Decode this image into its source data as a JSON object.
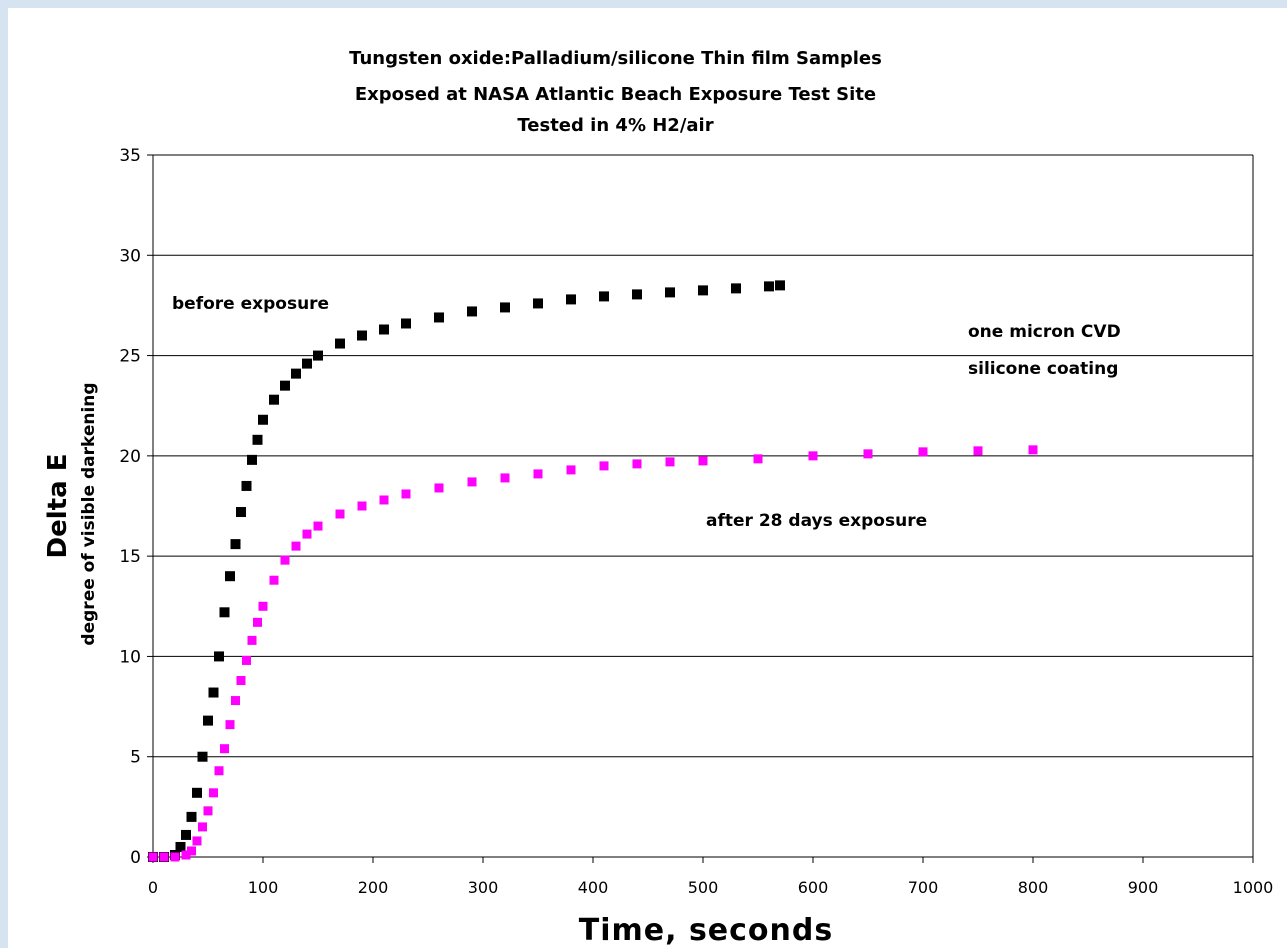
{
  "chart_data": {
    "type": "scatter",
    "title_lines": [
      "Tungsten oxide:Palladium/silicone Thin film Samples",
      "Exposed at NASA Atlantic Beach Exposure Test Site",
      "Tested in 4% H2/air"
    ],
    "xlabel": "Time, seconds",
    "ylabel": "Delta E",
    "ylabel_sub": "degree of visible darkening",
    "xlim": [
      0,
      1000
    ],
    "ylim": [
      0,
      35
    ],
    "x_ticks": [
      "0",
      "100",
      "200",
      "300",
      "400",
      "500",
      "600",
      "700",
      "800",
      "900",
      "1000"
    ],
    "y_ticks": [
      "0",
      "5",
      "10",
      "15",
      "20",
      "25",
      "30",
      "35"
    ],
    "grid": "horizontal",
    "annotations": {
      "before": "before exposure",
      "coating_1": "one micron CVD",
      "coating_2": "silicone coating",
      "after": "after 28 days exposure"
    },
    "series": [
      {
        "key": "before",
        "color": "#000000",
        "points": [
          [
            0,
            0
          ],
          [
            10,
            0
          ],
          [
            20,
            0.1
          ],
          [
            25,
            0.5
          ],
          [
            30,
            1.1
          ],
          [
            35,
            2.0
          ],
          [
            40,
            3.2
          ],
          [
            45,
            5.0
          ],
          [
            50,
            6.8
          ],
          [
            55,
            8.2
          ],
          [
            60,
            10.0
          ],
          [
            65,
            12.2
          ],
          [
            70,
            14.0
          ],
          [
            75,
            15.6
          ],
          [
            80,
            17.2
          ],
          [
            85,
            18.5
          ],
          [
            90,
            19.8
          ],
          [
            95,
            20.8
          ],
          [
            100,
            21.8
          ],
          [
            110,
            22.8
          ],
          [
            120,
            23.5
          ],
          [
            130,
            24.1
          ],
          [
            140,
            24.6
          ],
          [
            150,
            25.0
          ],
          [
            170,
            25.6
          ],
          [
            190,
            26.0
          ],
          [
            210,
            26.3
          ],
          [
            230,
            26.6
          ],
          [
            260,
            26.9
          ],
          [
            290,
            27.2
          ],
          [
            320,
            27.4
          ],
          [
            350,
            27.6
          ],
          [
            380,
            27.8
          ],
          [
            410,
            27.95
          ],
          [
            440,
            28.05
          ],
          [
            470,
            28.15
          ],
          [
            500,
            28.25
          ],
          [
            530,
            28.35
          ],
          [
            560,
            28.45
          ],
          [
            570,
            28.5
          ]
        ]
      },
      {
        "key": "after",
        "color": "#ff00ff",
        "points": [
          [
            0,
            0
          ],
          [
            10,
            0
          ],
          [
            20,
            0
          ],
          [
            30,
            0.1
          ],
          [
            35,
            0.3
          ],
          [
            40,
            0.8
          ],
          [
            45,
            1.5
          ],
          [
            50,
            2.3
          ],
          [
            55,
            3.2
          ],
          [
            60,
            4.3
          ],
          [
            65,
            5.4
          ],
          [
            70,
            6.6
          ],
          [
            75,
            7.8
          ],
          [
            80,
            8.8
          ],
          [
            85,
            9.8
          ],
          [
            90,
            10.8
          ],
          [
            95,
            11.7
          ],
          [
            100,
            12.5
          ],
          [
            110,
            13.8
          ],
          [
            120,
            14.8
          ],
          [
            130,
            15.5
          ],
          [
            140,
            16.1
          ],
          [
            150,
            16.5
          ],
          [
            170,
            17.1
          ],
          [
            190,
            17.5
          ],
          [
            210,
            17.8
          ],
          [
            230,
            18.1
          ],
          [
            260,
            18.4
          ],
          [
            290,
            18.7
          ],
          [
            320,
            18.9
          ],
          [
            350,
            19.1
          ],
          [
            380,
            19.3
          ],
          [
            410,
            19.5
          ],
          [
            440,
            19.6
          ],
          [
            470,
            19.7
          ],
          [
            500,
            19.75
          ],
          [
            550,
            19.85
          ],
          [
            600,
            20.0
          ],
          [
            650,
            20.1
          ],
          [
            700,
            20.2
          ],
          [
            750,
            20.25
          ],
          [
            800,
            20.3
          ]
        ]
      }
    ]
  }
}
